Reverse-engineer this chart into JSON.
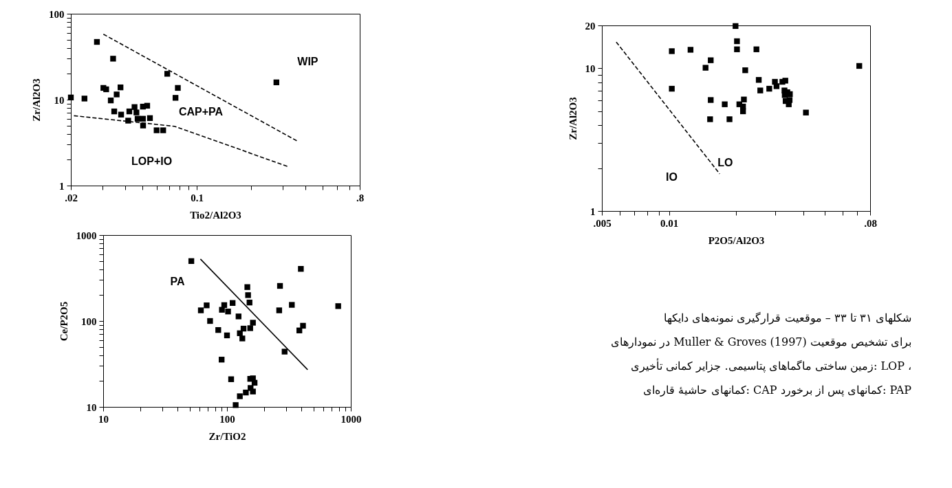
{
  "chart_data": [
    {
      "type": "scatter",
      "xlabel": "Tio2/Al2O3",
      "ylabel": "Zr/Al2O3",
      "log": "xy",
      "grid": false,
      "xlim": [
        0.02,
        0.8
      ],
      "ylim": [
        1,
        100
      ],
      "xticks": [
        {
          "value": 0.02,
          "label": ".02"
        },
        {
          "value": 0.03,
          "label": null
        },
        {
          "value": 0.04,
          "label": null
        },
        {
          "value": 0.05,
          "label": null
        },
        {
          "value": 0.06,
          "label": null
        },
        {
          "value": 0.07,
          "label": null
        },
        {
          "value": 0.08,
          "label": null
        },
        {
          "value": 0.09,
          "label": null
        },
        0.1,
        {
          "value": 0.2,
          "label": null
        },
        {
          "value": 0.3,
          "label": null
        },
        {
          "value": 0.4,
          "label": null
        },
        {
          "value": 0.5,
          "label": null
        },
        {
          "value": 0.6,
          "label": null
        },
        {
          "value": 0.7,
          "label": null
        },
        {
          "value": 0.8,
          "label": ".8"
        }
      ],
      "yticks": [
        1,
        {
          "value": 2,
          "label": null
        },
        {
          "value": 3,
          "label": null
        },
        {
          "value": 4,
          "label": null
        },
        {
          "value": 5,
          "label": null
        },
        {
          "value": 6,
          "label": null
        },
        {
          "value": 7,
          "label": null
        },
        {
          "value": 8,
          "label": null
        },
        {
          "value": 9,
          "label": null
        },
        10,
        {
          "value": 20,
          "label": null
        },
        {
          "value": 30,
          "label": null
        },
        {
          "value": 40,
          "label": null
        },
        {
          "value": 50,
          "label": null
        },
        {
          "value": 60,
          "label": null
        },
        {
          "value": 70,
          "label": null
        },
        {
          "value": 80,
          "label": null
        },
        {
          "value": 90,
          "label": null
        },
        100
      ],
      "series": [
        {
          "type": "scatter",
          "marker": "square",
          "color": "#000000",
          "x": [
            0.02,
            0.0238,
            0.0279,
            0.0343,
            0.0303,
            0.0314,
            0.0377,
            0.0359,
            0.0333,
            0.0348,
            0.038,
            0.0416,
            0.0422,
            0.0451,
            0.0462,
            0.0469,
            0.0502,
            0.0503,
            0.0502,
            0.053,
            0.0549,
            0.0598,
            0.065,
            0.0685,
            0.0784,
            0.0761,
            0.276
          ],
          "values": [
            10.6,
            10.3,
            47,
            30,
            13.7,
            13.2,
            13.9,
            11.5,
            9.8,
            7.3,
            6.7,
            5.7,
            7.3,
            8.2,
            7.1,
            6.0,
            6.0,
            5.0,
            8.3,
            8.5,
            6.1,
            4.4,
            4.4,
            20,
            13.7,
            10.5,
            15.9
          ]
        },
        {
          "type": "line",
          "color": "#000000",
          "line_style": "dashed",
          "x": [
            0.0303,
            0.36
          ],
          "values": [
            57.8,
            3.3
          ]
        },
        {
          "type": "line",
          "color": "#000000",
          "line_style": "dashed",
          "x": [
            0.0208,
            0.075,
            0.319
          ],
          "values": [
            6.5,
            4.9,
            1.67
          ]
        }
      ],
      "annotations": [
        "WIP",
        "CAP+PA",
        "LOP+IO"
      ]
    },
    {
      "type": "scatter",
      "xlabel": "Zr/TiO2",
      "ylabel": "Ce/P2O5",
      "log": "xy",
      "grid": false,
      "xlim": [
        10,
        1000
      ],
      "ylim": [
        10,
        1000
      ],
      "xticks": [
        10,
        {
          "value": 20,
          "label": null
        },
        {
          "value": 30,
          "label": null
        },
        {
          "value": 40,
          "label": null
        },
        {
          "value": 50,
          "label": null
        },
        {
          "value": 60,
          "label": null
        },
        {
          "value": 70,
          "label": null
        },
        {
          "value": 80,
          "label": null
        },
        {
          "value": 90,
          "label": null
        },
        100,
        {
          "value": 200,
          "label": null
        },
        {
          "value": 300,
          "label": null
        },
        {
          "value": 400,
          "label": null
        },
        {
          "value": 500,
          "label": null
        },
        {
          "value": 600,
          "label": null
        },
        {
          "value": 700,
          "label": null
        },
        {
          "value": 800,
          "label": null
        },
        {
          "value": 900,
          "label": null
        },
        1000
      ],
      "yticks": [
        10,
        {
          "value": 20,
          "label": null
        },
        {
          "value": 30,
          "label": null
        },
        {
          "value": 40,
          "label": null
        },
        {
          "value": 50,
          "label": null
        },
        {
          "value": 60,
          "label": null
        },
        {
          "value": 70,
          "label": null
        },
        {
          "value": 80,
          "label": null
        },
        {
          "value": 90,
          "label": null
        },
        100,
        {
          "value": 200,
          "label": null
        },
        {
          "value": 300,
          "label": null
        },
        {
          "value": 400,
          "label": null
        },
        {
          "value": 500,
          "label": null
        },
        {
          "value": 600,
          "label": null
        },
        {
          "value": 700,
          "label": null
        },
        {
          "value": 800,
          "label": null
        },
        {
          "value": 900,
          "label": null
        },
        1000
      ],
      "series": [
        {
          "type": "scatter",
          "marker": "square",
          "color": "#000000",
          "x": [
            51.5,
            395,
            146,
            268,
            148,
            152,
            68.5,
            61.5,
            95,
            91,
            102,
            111,
            334,
            264,
            791,
            124,
            73,
            162,
            85,
            136,
            154,
            411,
            384,
            127,
            100,
            133,
            292,
            90.5,
            108,
            154,
            162,
            167,
            155,
            162,
            142,
            127,
            117.5
          ],
          "values": [
            498,
            404,
            248,
            256,
            200,
            164,
            152,
            133,
            153,
            135,
            129,
            162,
            154,
            133,
            149,
            113,
            100,
            95.5,
            78.5,
            81.5,
            82.5,
            88,
            77.6,
            72,
            68,
            62.6,
            44,
            35.5,
            21,
            21.2,
            21.5,
            19.1,
            16.6,
            15.1,
            14.7,
            13.3,
            10.5
          ]
        },
        {
          "type": "line",
          "color": "#000000",
          "line_style": "solid",
          "x": [
            61,
            448
          ],
          "values": [
            526,
            27.1
          ]
        }
      ],
      "annotations": [
        "PA"
      ]
    },
    {
      "type": "scatter",
      "xlabel": "P2O5/Al2O3",
      "ylabel": "Zr/Al2O3",
      "log": "xy",
      "grid": false,
      "xlim": [
        0.005,
        0.08
      ],
      "ylim": [
        1,
        20
      ],
      "xticks": [
        {
          "value": 0.005,
          "label": ".005"
        },
        {
          "value": 0.006,
          "label": null
        },
        {
          "value": 0.007,
          "label": null
        },
        {
          "value": 0.008,
          "label": null
        },
        {
          "value": 0.009,
          "label": null
        },
        {
          "value": 0.01,
          "label": "0.01"
        },
        {
          "value": 0.02,
          "label": null
        },
        {
          "value": 0.03,
          "label": null
        },
        {
          "value": 0.04,
          "label": null
        },
        {
          "value": 0.05,
          "label": null
        },
        {
          "value": 0.06,
          "label": null
        },
        {
          "value": 0.07,
          "label": null
        },
        {
          "value": 0.08,
          "label": ".08"
        }
      ],
      "yticks": [
        1,
        {
          "value": 2,
          "label": null
        },
        {
          "value": 3,
          "label": null
        },
        {
          "value": 4,
          "label": null
        },
        {
          "value": 5,
          "label": null
        },
        {
          "value": 6,
          "label": null
        },
        {
          "value": 7,
          "label": null
        },
        {
          "value": 8,
          "label": null
        },
        {
          "value": 9,
          "label": null
        },
        10,
        20
      ],
      "series": [
        {
          "type": "scatter",
          "marker": "square",
          "color": "#000000",
          "x": [
            0.0199,
            0.0202,
            0.0202,
            0.0247,
            0.0103,
            0.0125,
            0.0154,
            0.0146,
            0.022,
            0.0715,
            0.0103,
            0.0253,
            0.0257,
            0.0282,
            0.0299,
            0.0304,
            0.0323,
            0.0333,
            0.033,
            0.0331,
            0.034,
            0.0349,
            0.0334,
            0.0348,
            0.0345,
            0.0412,
            0.0154,
            0.0178,
            0.0207,
            0.0217,
            0.0215,
            0.0215,
            0.0153,
            0.0187
          ],
          "values": [
            19.8,
            15.5,
            13.6,
            13.6,
            13.2,
            13.5,
            11.4,
            10.1,
            9.7,
            10.4,
            7.2,
            8.3,
            7.0,
            7.2,
            8.05,
            7.5,
            8.05,
            8.2,
            7.0,
            6.5,
            6.8,
            6.6,
            5.9,
            6.0,
            5.6,
            4.9,
            6.0,
            5.6,
            5.6,
            6.05,
            5.4,
            5.0,
            4.4,
            4.4
          ]
        },
        {
          "type": "line",
          "color": "#000000",
          "line_style": "dashed",
          "x": [
            0.0058,
            0.0169
          ],
          "values": [
            15.3,
            1.82
          ]
        }
      ],
      "annotations": [
        "IO",
        "LO"
      ]
    },
    {
      "type": "other",
      "annotations": [
        "شکلهای ۳۱ تا ۳۳ – موقعیت قرارگیری نمونه‌های دایکها",
        "در نمودارهای Muller & Groves (1997) برای تشخیص موقعیت",
        "زمین ساختی ماگماهای پتاسیمی. جزایر کمانی تأخیری: LOP ،",
        "کمانهای حاشیهٔ قاره‌ای: CAP  کمانهای پس از برخورد: PAP"
      ]
    }
  ]
}
